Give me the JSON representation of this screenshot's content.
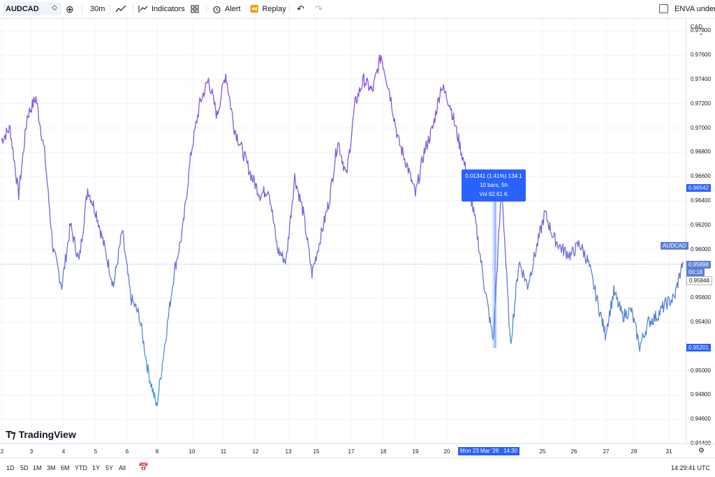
{
  "toolbar": {
    "symbol": "AUDCAD",
    "interval": "30m",
    "indicators_label": "Indicators",
    "alert_label": "Alert",
    "replay_label": "Replay",
    "watchlist_label": "ENVA under T"
  },
  "price_axis": {
    "currency": "CAD",
    "ticks": [
      "0.97800",
      "0.97600",
      "0.97400",
      "0.97200",
      "0.97000",
      "0.96800",
      "0.96600",
      "0.96400",
      "0.96200",
      "0.96000",
      "0.95600",
      "0.95400",
      "0.95000",
      "0.94800",
      "0.94600",
      "0.94400"
    ],
    "range_high": "0.96542",
    "range_low": "0.95201",
    "current_price": "0.95898",
    "current_symbol": "AUDCAD",
    "countdown": "00:18",
    "crosshair_price": "0.95848"
  },
  "time_axis": {
    "ticks": [
      "2",
      "3",
      "4",
      "5",
      "6",
      "8",
      "10",
      "11",
      "12",
      "13",
      "15",
      "17",
      "18",
      "19",
      "20",
      "25",
      "26",
      "27",
      "29",
      "31"
    ],
    "highlight_label": "Mon 23 Mar '26",
    "highlight_time": "14:30"
  },
  "measure": {
    "line1": "0.01341 (1.41%) 134.1",
    "line2": "10 bars, 5h",
    "line3": "Vol 92.61 K"
  },
  "logo": {
    "text": "TradingView"
  },
  "bottom": {
    "ranges": [
      "1D",
      "5D",
      "1M",
      "3M",
      "6M",
      "YTD",
      "1Y",
      "5Y",
      "All"
    ],
    "clock": "14:29:41 UTC"
  },
  "colors": {
    "accent": "#2962ff",
    "line_start": "#8b4ee8",
    "line_mid": "#5b7fd6",
    "line_low": "#3aa0e0"
  },
  "chart_data": {
    "type": "line",
    "series": [
      {
        "x_labels": [
          "2",
          "3",
          "4",
          "5",
          "6",
          "8",
          "10",
          "11",
          "12",
          "13",
          "15",
          "17",
          "18",
          "19",
          "20",
          "23",
          "25",
          "26",
          "27",
          "29",
          "31"
        ],
        "values": [
          0.969,
          0.97,
          0.9645,
          0.971,
          0.9725,
          0.968,
          0.96,
          0.957,
          0.962,
          0.959,
          0.965,
          0.963,
          0.96,
          0.957,
          0.9615,
          0.956,
          0.9545,
          0.95,
          0.947,
          0.9525,
          0.958,
          0.9615,
          0.968,
          0.972,
          0.974,
          0.971,
          0.9745,
          0.97,
          0.968,
          0.966,
          0.9645,
          0.965,
          0.96,
          0.959,
          0.966,
          0.963,
          0.958,
          0.961,
          0.964,
          0.969,
          0.966,
          0.972,
          0.974,
          0.973,
          0.976,
          0.973,
          0.969,
          0.967,
          0.9645,
          0.968,
          0.97,
          0.9735,
          0.972,
          0.969,
          0.966,
          0.962,
          0.957,
          0.9525,
          0.9654,
          0.952,
          0.959,
          0.957,
          0.96,
          0.963,
          0.961,
          0.96,
          0.9595,
          0.9605,
          0.959,
          0.956,
          0.953,
          0.9565,
          0.9545,
          0.955,
          0.952,
          0.954,
          0.9545,
          0.9555,
          0.956,
          0.959
        ]
      }
    ],
    "ylim": [
      0.944,
      0.979
    ]
  }
}
